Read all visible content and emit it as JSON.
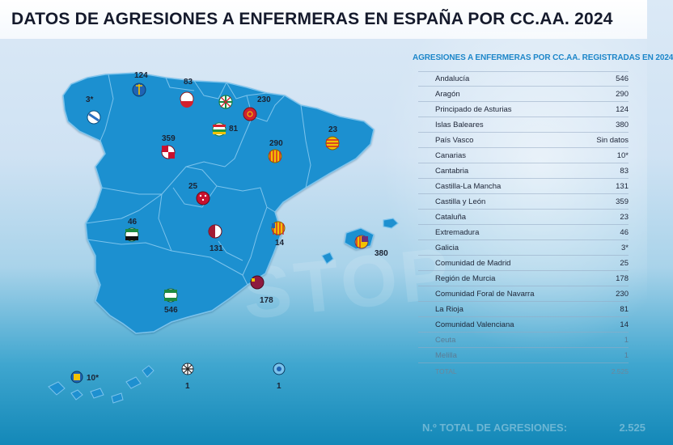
{
  "title": "DATOS DE AGRESIONES A ENFERMERAS EN ESPAÑA POR CC.AA. 2024",
  "watermark": "STOP",
  "table": {
    "title": "AGRESIONES A ENFERMERAS POR CC.AA. REGISTRADAS EN 2024",
    "rows": [
      {
        "region": "Andalucía",
        "value": "546"
      },
      {
        "region": "Aragón",
        "value": "290"
      },
      {
        "region": "Principado de Asturias",
        "value": "124"
      },
      {
        "region": "Islas Baleares",
        "value": "380"
      },
      {
        "region": "País Vasco",
        "value": "Sin datos"
      },
      {
        "region": "Canarias",
        "value": "10*"
      },
      {
        "region": "Cantabria",
        "value": "83"
      },
      {
        "region": "Castilla-La Mancha",
        "value": "131"
      },
      {
        "region": "Castilla y León",
        "value": "359"
      },
      {
        "region": "Cataluña",
        "value": "23"
      },
      {
        "region": "Extremadura",
        "value": "46"
      },
      {
        "region": "Galicia",
        "value": "3*"
      },
      {
        "region": "Comunidad de Madrid",
        "value": "25"
      },
      {
        "region": "Región de Murcia",
        "value": "178"
      },
      {
        "region": "Comunidad Foral de Navarra",
        "value": "230"
      },
      {
        "region": "La Rioja",
        "value": "81"
      },
      {
        "region": "Comunidad Valenciana",
        "value": "14"
      },
      {
        "region": "Ceuta",
        "value": "1"
      },
      {
        "region": "Melilla",
        "value": "1"
      },
      {
        "region": "TOTAL",
        "value": "2.525"
      }
    ]
  },
  "map_labels": {
    "galicia": "3*",
    "asturias": "124",
    "cantabria": "83",
    "navarra": "230",
    "castilla_leon": "359",
    "la_rioja": "81",
    "aragon": "290",
    "cataluna": "23",
    "madrid": "25",
    "extremadura": "46",
    "castilla_la_mancha": "131",
    "valenciana": "14",
    "baleares": "380",
    "murcia": "178",
    "andalucia": "546",
    "canarias": "10*",
    "ceuta": "1",
    "melilla": "1"
  },
  "footer": {
    "label": "N.º TOTAL DE AGRESIONES:",
    "value": "2.525"
  },
  "colors": {
    "map_fill": "#1e90d0",
    "map_border": "#7cc3ec",
    "table_title": "#1d86c9",
    "title_text": "#151a2c"
  }
}
